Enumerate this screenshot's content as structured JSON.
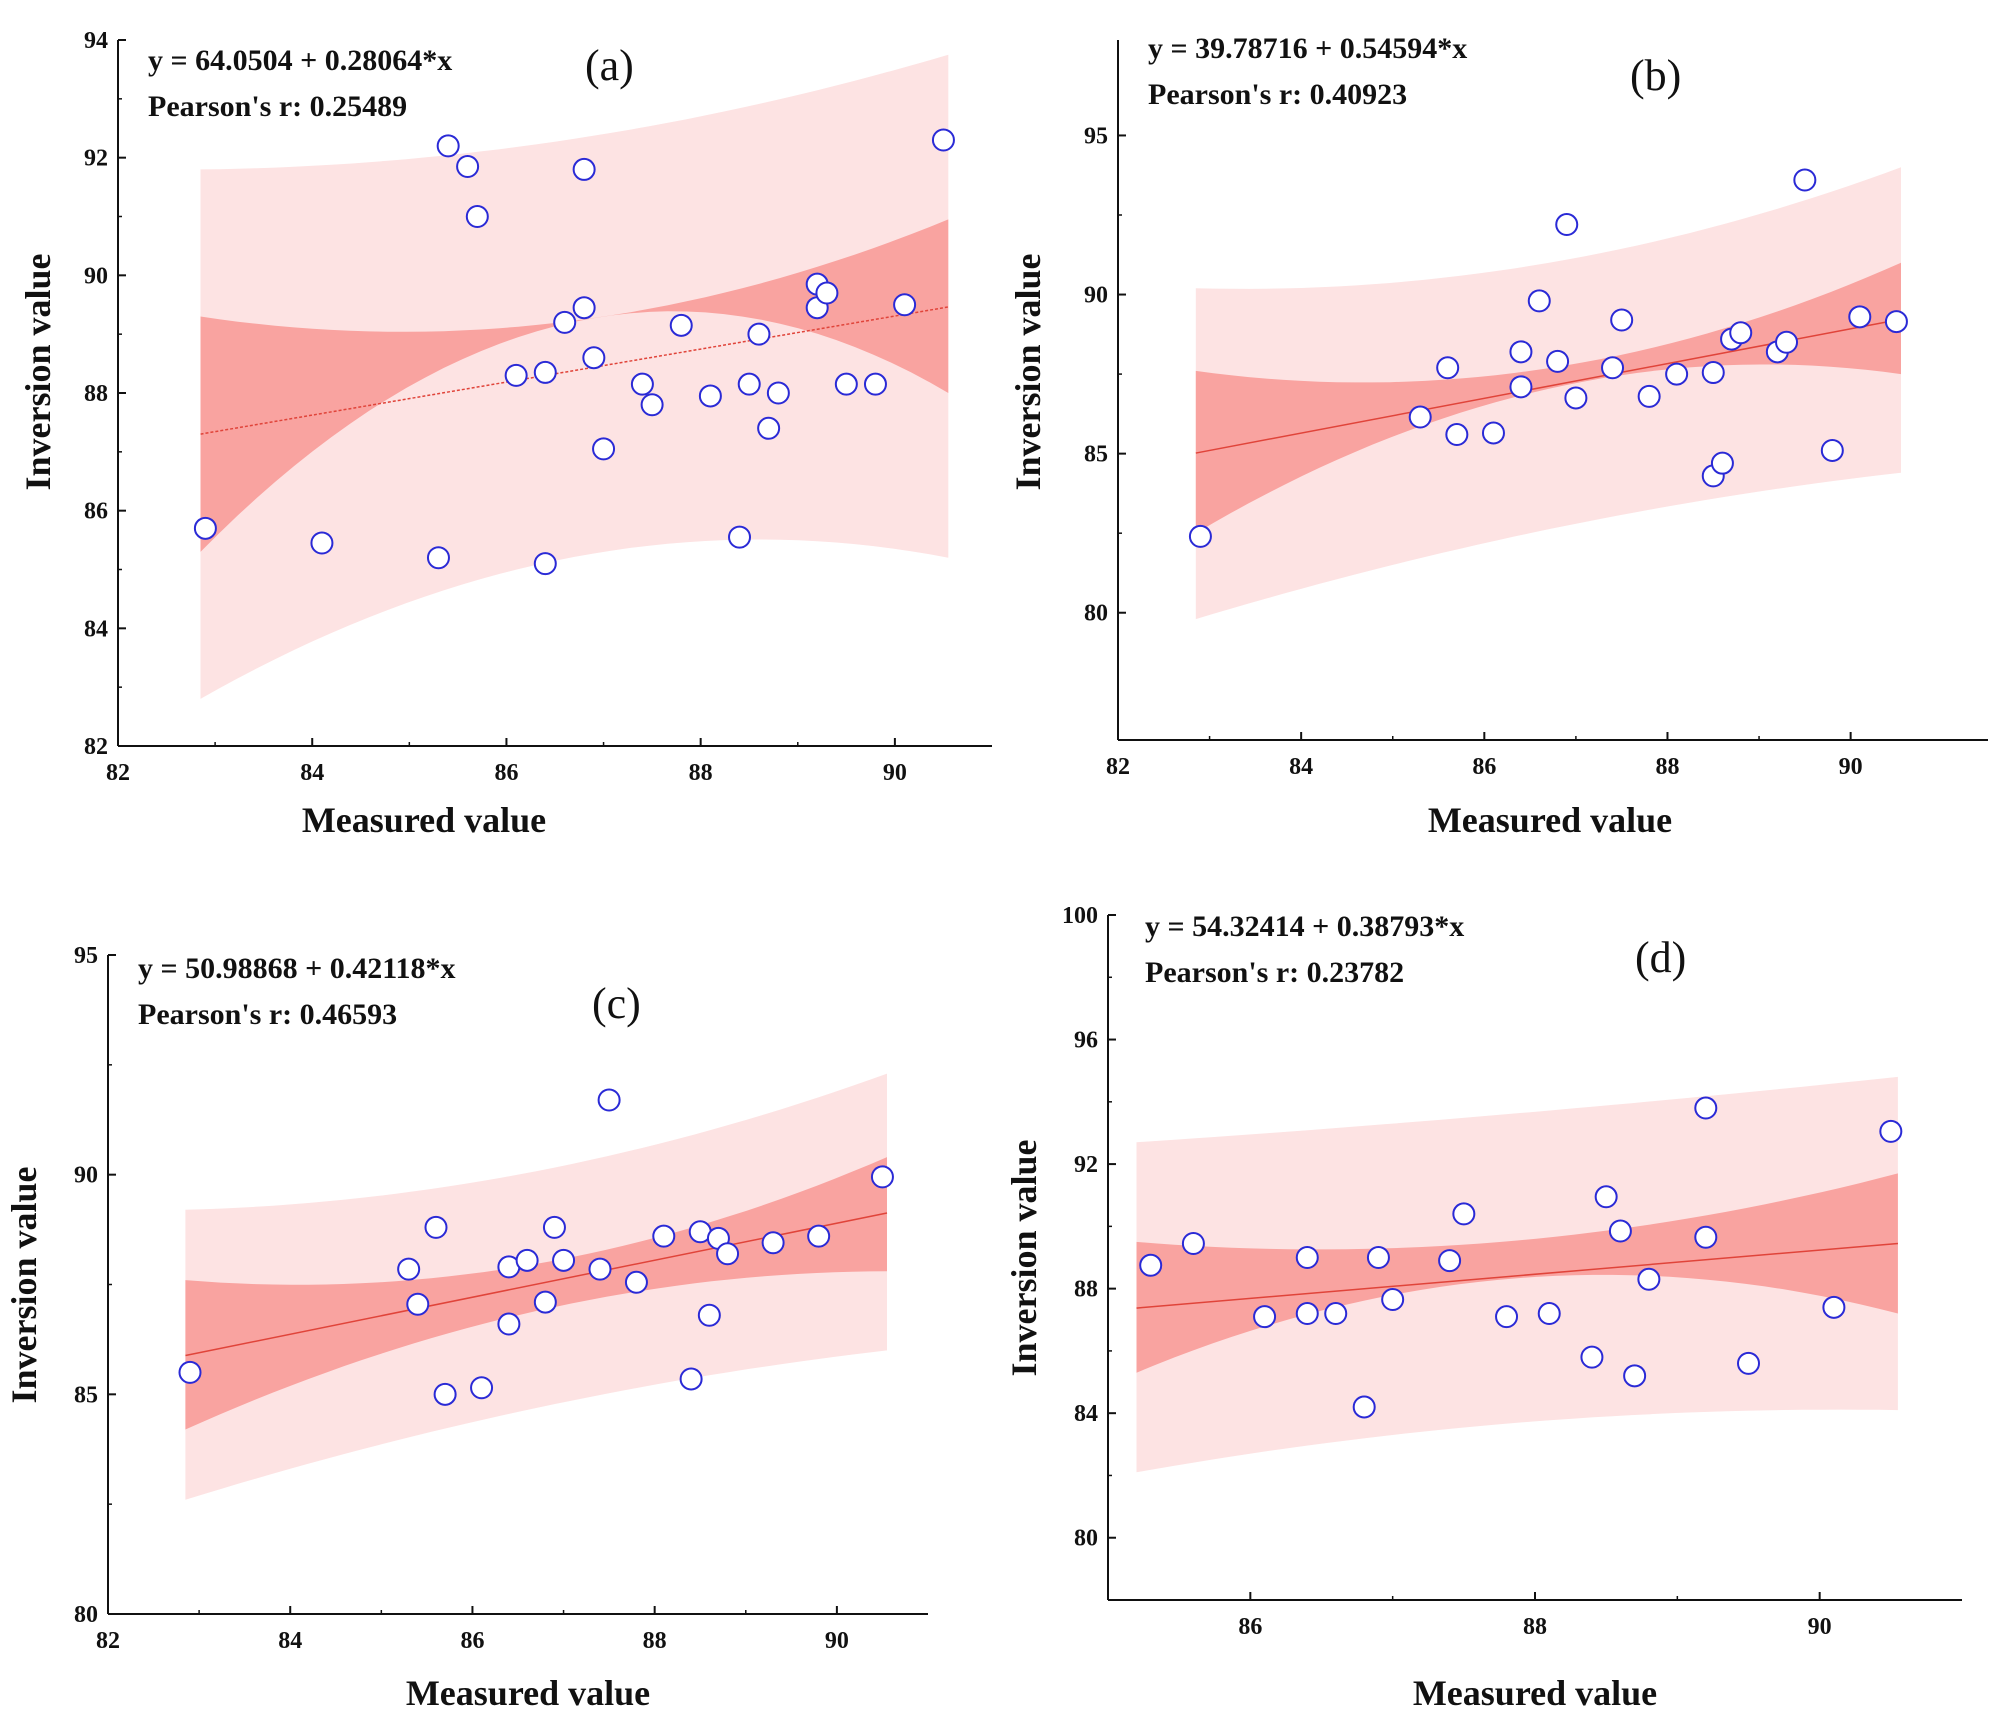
{
  "chart_data": [
    {
      "type": "scatter",
      "panel_label": "(a)",
      "equation": "y = 64.0504 + 0.28064*x",
      "pearson": "Pearson's r: 0.25489",
      "slope": 0.28064,
      "intercept": 64.0504,
      "xlabel": "Measured value",
      "ylabel": "Inversion value",
      "xlim": [
        82,
        91
      ],
      "ylim": [
        82,
        94
      ],
      "xticks": [
        82,
        84,
        86,
        88,
        90
      ],
      "yticks": [
        82,
        84,
        86,
        88,
        90,
        92,
        94
      ],
      "xtick_labels": [
        "82",
        "84",
        "86",
        "88",
        "90"
      ],
      "ytick_labels": [
        "82",
        "84",
        "86",
        "88",
        "90",
        "92",
        "94"
      ],
      "band_x": [
        82.85,
        90.55
      ],
      "confidence_band": {
        "lower": [
          85.3,
          89.3,
          88.0
        ],
        "upper": [
          89.3,
          89.3,
          90.95
        ]
      },
      "prediction_band": {
        "lower": [
          82.8,
          85.3,
          85.2
        ],
        "upper": [
          91.8,
          92.4,
          93.75
        ]
      },
      "band_mid_x": 87.0,
      "points": [
        {
          "x": 82.9,
          "y": 85.7
        },
        {
          "x": 84.1,
          "y": 85.45
        },
        {
          "x": 85.3,
          "y": 85.2
        },
        {
          "x": 85.4,
          "y": 92.2
        },
        {
          "x": 85.6,
          "y": 91.85
        },
        {
          "x": 85.7,
          "y": 91.0
        },
        {
          "x": 86.1,
          "y": 88.3
        },
        {
          "x": 86.4,
          "y": 88.35
        },
        {
          "x": 86.4,
          "y": 85.1
        },
        {
          "x": 86.6,
          "y": 89.2
        },
        {
          "x": 86.8,
          "y": 89.45
        },
        {
          "x": 86.8,
          "y": 91.8
        },
        {
          "x": 86.9,
          "y": 88.6
        },
        {
          "x": 87.0,
          "y": 87.05
        },
        {
          "x": 87.4,
          "y": 88.15
        },
        {
          "x": 87.5,
          "y": 87.8
        },
        {
          "x": 87.8,
          "y": 89.15
        },
        {
          "x": 88.1,
          "y": 87.95
        },
        {
          "x": 88.4,
          "y": 85.55
        },
        {
          "x": 88.5,
          "y": 88.15
        },
        {
          "x": 88.6,
          "y": 89.0
        },
        {
          "x": 88.7,
          "y": 87.4
        },
        {
          "x": 88.8,
          "y": 88.0
        },
        {
          "x": 89.2,
          "y": 89.85
        },
        {
          "x": 89.2,
          "y": 89.45
        },
        {
          "x": 89.3,
          "y": 89.7
        },
        {
          "x": 89.5,
          "y": 88.15
        },
        {
          "x": 89.8,
          "y": 88.15
        },
        {
          "x": 90.1,
          "y": 89.5
        },
        {
          "x": 90.5,
          "y": 92.3
        }
      ]
    },
    {
      "type": "scatter",
      "panel_label": "(b)",
      "equation": "y = 39.78716 + 0.54594*x",
      "pearson": "Pearson's r: 0.40923",
      "slope": 0.54594,
      "intercept": 39.78716,
      "xlabel": "Measured value",
      "ylabel": "Inversion value",
      "xlim": [
        82,
        91.5
      ],
      "ylim": [
        76,
        98
      ],
      "xticks": [
        82,
        84,
        86,
        88,
        90
      ],
      "yticks": [
        80,
        85,
        90,
        95
      ],
      "xtick_labels": [
        "82",
        "84",
        "86",
        "88",
        "90"
      ],
      "ytick_labels": [
        "80",
        "85",
        "90",
        "95"
      ],
      "band_x": [
        82.85,
        90.55
      ],
      "confidence_band": {
        "lower": [
          82.5,
          86.9,
          87.5
        ],
        "upper": [
          87.6,
          87.6,
          91.0
        ]
      },
      "prediction_band": {
        "lower": [
          79.8,
          82.5,
          84.4
        ],
        "upper": [
          90.2,
          90.9,
          94.0
        ]
      },
      "band_mid_x": 86.5,
      "points": [
        {
          "x": 82.9,
          "y": 82.4
        },
        {
          "x": 85.3,
          "y": 86.15
        },
        {
          "x": 85.6,
          "y": 87.7
        },
        {
          "x": 85.7,
          "y": 85.6
        },
        {
          "x": 86.1,
          "y": 85.65
        },
        {
          "x": 86.4,
          "y": 88.2
        },
        {
          "x": 86.4,
          "y": 87.1
        },
        {
          "x": 86.6,
          "y": 89.8
        },
        {
          "x": 86.8,
          "y": 87.9
        },
        {
          "x": 86.9,
          "y": 92.2
        },
        {
          "x": 87.0,
          "y": 86.75
        },
        {
          "x": 87.4,
          "y": 87.7
        },
        {
          "x": 87.5,
          "y": 89.2
        },
        {
          "x": 87.8,
          "y": 86.8
        },
        {
          "x": 88.1,
          "y": 87.5
        },
        {
          "x": 88.5,
          "y": 87.55
        },
        {
          "x": 88.5,
          "y": 84.3
        },
        {
          "x": 88.6,
          "y": 84.7
        },
        {
          "x": 88.7,
          "y": 88.6
        },
        {
          "x": 88.8,
          "y": 88.8
        },
        {
          "x": 89.2,
          "y": 88.2
        },
        {
          "x": 89.3,
          "y": 88.5
        },
        {
          "x": 89.5,
          "y": 93.6
        },
        {
          "x": 89.8,
          "y": 85.1
        },
        {
          "x": 90.1,
          "y": 89.3
        },
        {
          "x": 90.5,
          "y": 89.15
        }
      ]
    },
    {
      "type": "scatter",
      "panel_label": "(c)",
      "equation": "y = 50.98868 + 0.42118*x",
      "pearson": "Pearson's r: 0.46593",
      "slope": 0.42118,
      "intercept": 50.98868,
      "xlabel": "Measured value",
      "ylabel": "Inversion value",
      "xlim": [
        82,
        91
      ],
      "ylim": [
        80,
        95
      ],
      "xticks": [
        82,
        84,
        86,
        88,
        90
      ],
      "yticks": [
        80,
        85,
        90,
        95
      ],
      "xtick_labels": [
        "82",
        "84",
        "86",
        "88",
        "90"
      ],
      "ytick_labels": [
        "80",
        "85",
        "90",
        "95"
      ],
      "band_x": [
        82.85,
        90.55
      ],
      "confidence_band": {
        "lower": [
          84.2,
          86.8,
          87.8
        ],
        "upper": [
          87.6,
          87.9,
          90.4
        ]
      },
      "prediction_band": {
        "lower": [
          82.6,
          84.6,
          86.0
        ],
        "upper": [
          89.2,
          90.0,
          92.3
        ]
      },
      "band_mid_x": 86.5,
      "points": [
        {
          "x": 82.9,
          "y": 85.5
        },
        {
          "x": 85.3,
          "y": 87.85
        },
        {
          "x": 85.4,
          "y": 87.05
        },
        {
          "x": 85.6,
          "y": 88.8
        },
        {
          "x": 85.7,
          "y": 85.0
        },
        {
          "x": 86.1,
          "y": 85.15
        },
        {
          "x": 86.4,
          "y": 87.9
        },
        {
          "x": 86.4,
          "y": 86.6
        },
        {
          "x": 86.6,
          "y": 88.05
        },
        {
          "x": 86.8,
          "y": 87.1
        },
        {
          "x": 86.9,
          "y": 88.8
        },
        {
          "x": 87.0,
          "y": 88.05
        },
        {
          "x": 87.4,
          "y": 87.85
        },
        {
          "x": 87.5,
          "y": 91.7
        },
        {
          "x": 87.8,
          "y": 87.55
        },
        {
          "x": 88.1,
          "y": 88.6
        },
        {
          "x": 88.4,
          "y": 85.35
        },
        {
          "x": 88.5,
          "y": 88.7
        },
        {
          "x": 88.6,
          "y": 86.8
        },
        {
          "x": 88.7,
          "y": 88.55
        },
        {
          "x": 88.8,
          "y": 88.2
        },
        {
          "x": 89.3,
          "y": 88.45
        },
        {
          "x": 89.8,
          "y": 88.6
        },
        {
          "x": 90.5,
          "y": 89.95
        }
      ]
    },
    {
      "type": "scatter",
      "panel_label": "(d)",
      "equation": "y = 54.32414 + 0.38793*x",
      "pearson": "Pearson's r: 0.23782",
      "slope": 0.38793,
      "intercept": 54.32414,
      "xlabel": "Measured value",
      "ylabel": "Inversion value",
      "xlim": [
        85,
        91
      ],
      "ylim": [
        78,
        100
      ],
      "xticks": [
        86,
        88,
        90
      ],
      "yticks": [
        80,
        84,
        88,
        92,
        96,
        100
      ],
      "xtick_labels": [
        "86",
        "88",
        "90"
      ],
      "ytick_labels": [
        "80",
        "84",
        "88",
        "92",
        "96",
        "100"
      ],
      "band_x": [
        85.2,
        90.55
      ],
      "confidence_band": {
        "lower": [
          85.3,
          87.8,
          87.2
        ],
        "upper": [
          89.5,
          89.3,
          91.7
        ]
      },
      "prediction_band": {
        "lower": [
          82.1,
          83.3,
          84.1
        ],
        "upper": [
          92.7,
          93.3,
          94.8
        ]
      },
      "band_mid_x": 87.0,
      "points": [
        {
          "x": 85.3,
          "y": 88.75
        },
        {
          "x": 85.6,
          "y": 89.45
        },
        {
          "x": 86.1,
          "y": 87.1
        },
        {
          "x": 86.4,
          "y": 89.0
        },
        {
          "x": 86.4,
          "y": 87.2
        },
        {
          "x": 86.6,
          "y": 87.2
        },
        {
          "x": 86.8,
          "y": 84.2
        },
        {
          "x": 86.9,
          "y": 89.0
        },
        {
          "x": 87.0,
          "y": 87.65
        },
        {
          "x": 87.4,
          "y": 88.9
        },
        {
          "x": 87.5,
          "y": 90.4
        },
        {
          "x": 87.8,
          "y": 87.1
        },
        {
          "x": 88.1,
          "y": 87.2
        },
        {
          "x": 88.4,
          "y": 85.8
        },
        {
          "x": 88.5,
          "y": 90.95
        },
        {
          "x": 88.6,
          "y": 89.85
        },
        {
          "x": 88.7,
          "y": 85.2
        },
        {
          "x": 88.8,
          "y": 88.3
        },
        {
          "x": 89.2,
          "y": 93.8
        },
        {
          "x": 89.2,
          "y": 89.65
        },
        {
          "x": 89.5,
          "y": 85.6
        },
        {
          "x": 90.1,
          "y": 87.4
        },
        {
          "x": 90.5,
          "y": 93.05
        }
      ]
    }
  ],
  "colors": {
    "prediction_band": "#fde3e3",
    "confidence_band": "#f9a3a0",
    "fit_line": "#e0443a",
    "marker_stroke": "#2a2ad6",
    "marker_fill": "#ffffff",
    "axis": "#111111"
  }
}
